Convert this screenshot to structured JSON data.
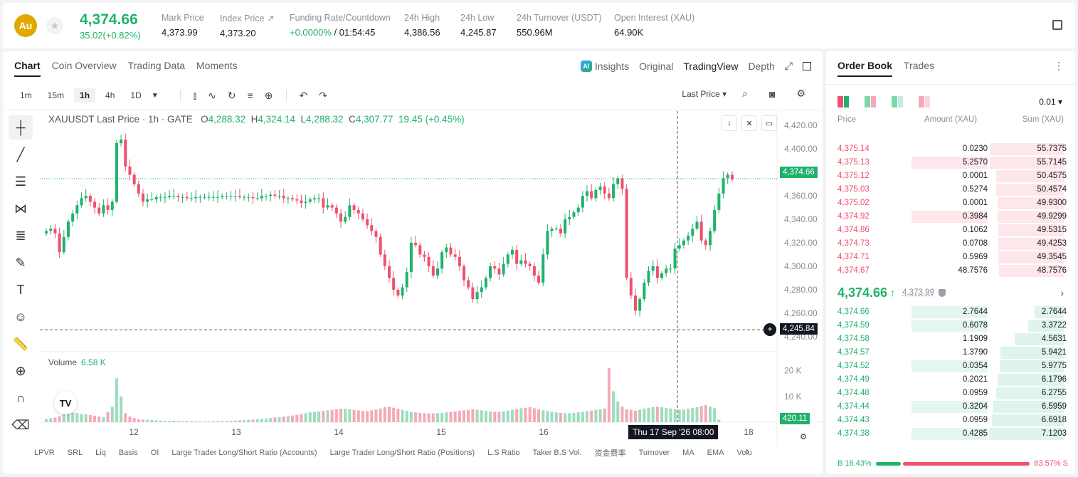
{
  "header": {
    "coin_symbol": "Au",
    "last_price": "4,374.66",
    "change": "35.02(+0.82%)",
    "stats": [
      {
        "label": "Mark Price",
        "value": "4,373.99"
      },
      {
        "label": "Index Price ↗",
        "value": "4,373.20"
      },
      {
        "label": "Funding Rate/Countdown",
        "value_green": "+0.0000%",
        "value": " / 01:54:45"
      },
      {
        "label": "24h High",
        "value": "4,386.56"
      },
      {
        "label": "24h Low",
        "value": "4,245.87"
      },
      {
        "label": "24h Turnover (USDT)",
        "value": "550.96M"
      },
      {
        "label": "Open Interest (XAU)",
        "value": "64.90K"
      }
    ]
  },
  "chart_tabs": [
    "Chart",
    "Coin Overview",
    "Trading Data",
    "Moments"
  ],
  "view_tabs": {
    "ai_badge": "AI",
    "insights": "Insights",
    "original": "Original",
    "tradingview": "TradingView",
    "depth": "Depth"
  },
  "intervals": [
    "1m",
    "15m",
    "1h",
    "4h",
    "1D"
  ],
  "toolbar": {
    "price_type": "Last Price"
  },
  "legend": {
    "symbol": "XAUUSDT Last Price · 1h · GATE",
    "o_label": "O",
    "o": "4,288.32",
    "h_label": "H",
    "h": "4,324.14",
    "l_label": "L",
    "l": "4,288.32",
    "c_label": "C",
    "c": "4,307.77",
    "chg": "19.45 (+0.45%)"
  },
  "volume_legend": {
    "label": "Volume",
    "value": "6.58 K"
  },
  "crosshair": {
    "time": "Thu 17 Sep '26   08:00",
    "price": "4,245.84"
  },
  "last_price_tag": "4,374.66",
  "volume_tag": "420.11",
  "tv_logo": "TV",
  "indicators": [
    "LPVR",
    "SRL",
    "Liq",
    "Basis",
    "OI",
    "Large Trader Long/Short Ratio (Accounts)",
    "Large Trader Long/Short Ratio (Positions)",
    "L.S Ratio",
    "Taker B.S Vol.",
    "资金费率",
    "Turnover",
    "MA",
    "EMA",
    "Volu"
  ],
  "colors": {
    "up": "#20b26c",
    "down": "#f0506e"
  },
  "chart_data": {
    "type": "candlestick",
    "title": "XAUUSDT Last Price · 1h · GATE",
    "price_ticks": [
      "4,420.00",
      "4,400.00",
      "4,380.00",
      "4,360.00",
      "4,340.00",
      "4,320.00",
      "4,300.00",
      "4,280.00",
      "4,260.00",
      "4,240.00"
    ],
    "volume_ticks": [
      "20 K",
      "10 K"
    ],
    "x_ticks": [
      "12",
      "13",
      "14",
      "15",
      "16",
      "18"
    ],
    "price_range": [
      4232,
      4425
    ],
    "volume_max": 24,
    "closes": [
      4330,
      4332,
      4328,
      4312,
      4325,
      4338,
      4345,
      4352,
      4358,
      4360,
      4355,
      4350,
      4345,
      4352,
      4348,
      4355,
      4405,
      4408,
      4385,
      4378,
      4370,
      4362,
      4355,
      4357,
      4357,
      4359,
      4359,
      4359,
      4360,
      4360,
      4359,
      4359,
      4358,
      4358,
      4359,
      4359,
      4359,
      4359,
      4359,
      4359,
      4360,
      4360,
      4360,
      4360,
      4359,
      4359,
      4359,
      4358,
      4358,
      4360,
      4360,
      4361,
      4360,
      4360,
      4358,
      4358,
      4357,
      4356,
      4354,
      4355,
      4357,
      4358,
      4358,
      4350,
      4352,
      4350,
      4345,
      4338,
      4342,
      4352,
      4348,
      4345,
      4340,
      4335,
      4330,
      4325,
      4310,
      4300,
      4290,
      4280,
      4275,
      4282,
      4295,
      4320,
      4318,
      4310,
      4308,
      4300,
      4292,
      4298,
      4312,
      4316,
      4310,
      4308,
      4300,
      4288,
      4282,
      4272,
      4278,
      4282,
      4290,
      4300,
      4298,
      4293,
      4302,
      4310,
      4314,
      4302,
      4305,
      4302,
      4300,
      4292,
      4286,
      4310,
      4330,
      4332,
      4332,
      4328,
      4340,
      4342,
      4346,
      4350,
      4360,
      4364,
      4358,
      4365,
      4368,
      4362,
      4358,
      4370,
      4375,
      4366,
      4290,
      4275,
      4262,
      4272,
      4286,
      4296,
      4300,
      4290,
      4294,
      4298,
      4298,
      4315,
      4318,
      4322,
      4326,
      4332,
      4338,
      4322,
      4318,
      4330,
      4348,
      4362,
      4375,
      4378,
      4374
    ],
    "volumes": [
      1.2,
      1.5,
      1.8,
      2.4,
      3.0,
      3.4,
      3.6,
      3.5,
      3.2,
      3.0,
      2.8,
      2.5,
      2.2,
      2.0,
      4.0,
      6.0,
      17.0,
      10.0,
      3.5,
      2.2,
      1.6,
      1.2,
      1.0,
      0.9,
      0.8,
      0.7,
      0.6,
      0.5,
      0.5,
      0.5,
      0.4,
      0.4,
      0.4,
      0.4,
      0.3,
      0.3,
      0.3,
      0.3,
      0.3,
      0.4,
      0.4,
      0.4,
      0.5,
      0.6,
      0.7,
      0.8,
      0.9,
      1.0,
      1.1,
      1.2,
      1.4,
      1.6,
      1.8,
      2.0,
      2.2,
      2.4,
      2.6,
      2.9,
      3.2,
      3.5,
      3.8,
      4.0,
      4.2,
      4.4,
      4.6,
      4.8,
      5.0,
      5.2,
      5.2,
      5.0,
      4.8,
      4.6,
      4.4,
      4.3,
      4.6,
      4.9,
      5.3,
      5.8,
      6.0,
      5.6,
      5.2,
      4.8,
      4.4,
      4.0,
      3.8,
      3.6,
      3.5,
      3.4,
      3.4,
      3.5,
      3.6,
      3.8,
      4.0,
      4.2,
      4.4,
      4.6,
      4.8,
      5.0,
      4.8,
      4.6,
      4.4,
      4.2,
      4.0,
      4.0,
      4.2,
      4.5,
      4.8,
      5.1,
      5.4,
      5.6,
      5.8,
      5.4,
      5.0,
      4.6,
      4.3,
      4.0,
      3.8,
      3.6,
      3.5,
      3.5,
      3.6,
      3.8,
      4.0,
      4.3,
      4.5,
      4.8,
      5.0,
      5.3,
      21.0,
      12.0,
      8.0,
      6.0,
      5.0,
      4.8,
      4.5,
      4.8,
      5.2,
      5.6,
      5.8,
      6.0,
      5.8,
      5.5,
      5.3,
      5.0,
      4.8,
      4.9,
      5.2,
      5.5,
      5.8,
      6.2,
      6.6,
      6.0,
      5.4,
      1.0
    ],
    "current_price": 4374.66,
    "crosshair_price": 4245.84
  },
  "orderbook": {
    "tabs": [
      "Order Book",
      "Trades"
    ],
    "precision": "0.01 ▾",
    "headers": {
      "price": "Price",
      "amount": "Amount (XAU)",
      "sum": "Sum (XAU)"
    },
    "asks": [
      {
        "price": "4,375.14",
        "amount": "0.0230",
        "sum": "55.7375",
        "amt_hl": 0,
        "depth": 0.99
      },
      {
        "price": "4,375.13",
        "amount": "5.2570",
        "sum": "55.7145",
        "amt_hl": 1,
        "depth": 0.99
      },
      {
        "price": "4,375.12",
        "amount": "0.0001",
        "sum": "50.4575",
        "amt_hl": 0,
        "depth": 0.9
      },
      {
        "price": "4,375.03",
        "amount": "0.5274",
        "sum": "50.4574",
        "amt_hl": 0,
        "depth": 0.9
      },
      {
        "price": "4,375.02",
        "amount": "0.0001",
        "sum": "49.9300",
        "amt_hl": 0,
        "depth": 0.89
      },
      {
        "price": "4,374.92",
        "amount": "0.3984",
        "sum": "49.9299",
        "amt_hl": 1,
        "depth": 0.89
      },
      {
        "price": "4,374.86",
        "amount": "0.1062",
        "sum": "49.5315",
        "amt_hl": 0,
        "depth": 0.88
      },
      {
        "price": "4,374.73",
        "amount": "0.0708",
        "sum": "49.4253",
        "amt_hl": 0,
        "depth": 0.88
      },
      {
        "price": "4,374.71",
        "amount": "0.5969",
        "sum": "49.3545",
        "amt_hl": 0,
        "depth": 0.88
      },
      {
        "price": "4,374.67",
        "amount": "48.7576",
        "sum": "48.7576",
        "amt_hl": 0,
        "depth": 0.87
      }
    ],
    "mid": {
      "price": "4,374.66",
      "arrow": "↑",
      "mark": "4,373.99",
      "chevron": "›"
    },
    "bids": [
      {
        "price": "4,374.66",
        "amount": "2.7644",
        "sum": "2.7644",
        "amt_hl": 1,
        "depth": 0.39
      },
      {
        "price": "4,374.59",
        "amount": "0.6078",
        "sum": "3.3722",
        "amt_hl": 1,
        "depth": 0.48
      },
      {
        "price": "4,374.58",
        "amount": "1.1909",
        "sum": "4.5631",
        "amt_hl": 0,
        "depth": 0.66
      },
      {
        "price": "4,374.57",
        "amount": "1.3790",
        "sum": "5.9421",
        "amt_hl": 0,
        "depth": 0.85
      },
      {
        "price": "4,374.52",
        "amount": "0.0354",
        "sum": "5.9775",
        "amt_hl": 1,
        "depth": 0.86
      },
      {
        "price": "4,374.49",
        "amount": "0.2021",
        "sum": "6.1796",
        "amt_hl": 0,
        "depth": 0.89
      },
      {
        "price": "4,374.48",
        "amount": "0.0959",
        "sum": "6.2755",
        "amt_hl": 0,
        "depth": 0.9
      },
      {
        "price": "4,374.44",
        "amount": "0.3204",
        "sum": "6.5959",
        "amt_hl": 1,
        "depth": 0.94
      },
      {
        "price": "4,374.43",
        "amount": "0.0959",
        "sum": "6.6918",
        "amt_hl": 0,
        "depth": 0.96
      },
      {
        "price": "4,374.38",
        "amount": "0.4285",
        "sum": "7.1203",
        "amt_hl": 1,
        "depth": 1.0
      }
    ],
    "ratio": {
      "b_label": "B 16.43%",
      "s_label": "83.57% S",
      "b": 0.1643
    }
  }
}
